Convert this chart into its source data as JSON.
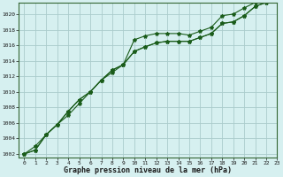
{
  "title": "Graphe pression niveau de la mer (hPa)",
  "background_color": "#d6f0f0",
  "grid_color": "#aacccc",
  "line_color": "#1a5c1a",
  "marker_color": "#1a5c1a",
  "xlim": [
    -0.5,
    23
  ],
  "ylim": [
    1001.5,
    1021.5
  ],
  "yticks": [
    1002,
    1004,
    1006,
    1008,
    1010,
    1012,
    1014,
    1016,
    1018,
    1020
  ],
  "xticks": [
    0,
    1,
    2,
    3,
    4,
    5,
    6,
    7,
    8,
    9,
    10,
    11,
    12,
    13,
    14,
    15,
    16,
    17,
    18,
    19,
    20,
    21,
    22,
    23
  ],
  "series": {
    "line1": [
      1002,
      1003.0,
      1004.5,
      1005.8,
      1007.0,
      1008.5,
      1010.0,
      1011.5,
      1012.5,
      1013.5,
      1016.7,
      1017.2,
      1017.5,
      1017.5,
      1017.5,
      1017.3,
      1017.8,
      1018.3,
      1019.8,
      1020.0,
      1020.8,
      1021.5,
      1022.0,
      1022.3
    ],
    "line2": [
      1002,
      1002.5,
      1004.5,
      1005.8,
      1007.5,
      1009.0,
      1010.0,
      1011.5,
      1012.8,
      1013.5,
      1015.2,
      1015.8,
      1016.3,
      1016.5,
      1016.5,
      1016.5,
      1017.0,
      1017.5,
      1018.8,
      1019.0,
      1019.8,
      1021.0,
      1021.5,
      1022.0
    ],
    "line3": [
      1002,
      1002.5,
      1004.5,
      1005.8,
      1007.5,
      1009.0,
      1010.0,
      1011.5,
      1012.8,
      1013.5,
      1015.2,
      1015.8,
      1016.3,
      1016.5,
      1016.5,
      1016.5,
      1017.0,
      1017.5,
      1018.8,
      1019.0,
      1019.8,
      1021.0,
      1021.5,
      1022.0
    ]
  }
}
